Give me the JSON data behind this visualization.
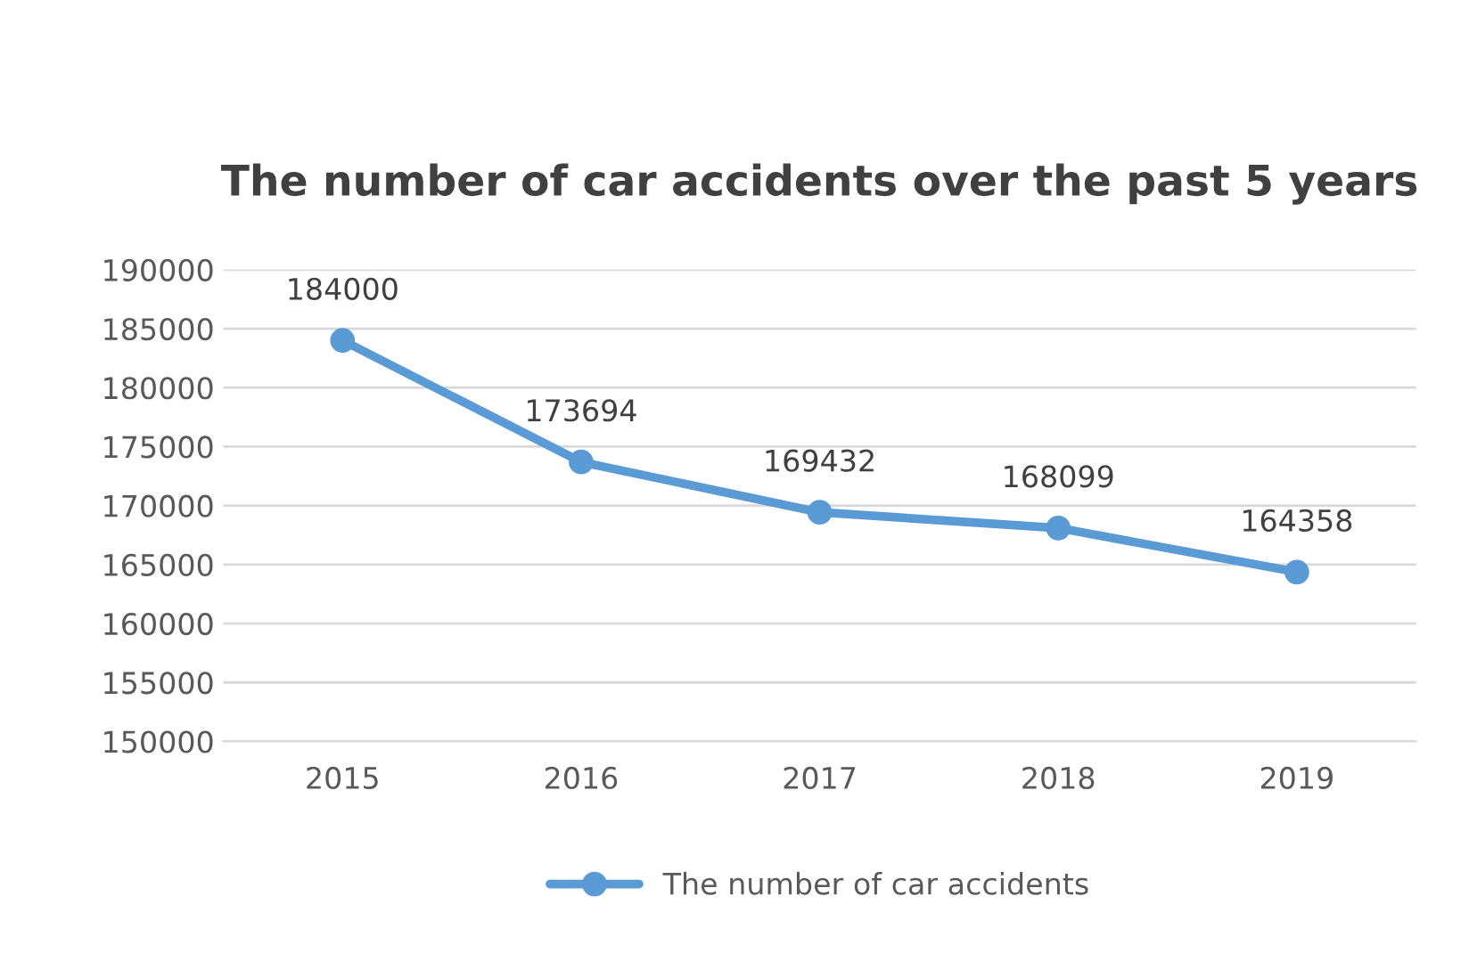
{
  "chart_data": {
    "type": "line",
    "title": "The number of car accidents over the past 5 years",
    "categories": [
      "2015",
      "2016",
      "2017",
      "2018",
      "2019"
    ],
    "series": [
      {
        "name": "The number of car accidents",
        "color": "#5b9bd5",
        "values": [
          184000,
          173694,
          169432,
          168099,
          164358
        ]
      }
    ],
    "ylim": [
      150000,
      190000
    ],
    "yticks": [
      150000,
      155000,
      160000,
      165000,
      170000,
      175000,
      180000,
      185000,
      190000
    ],
    "grid": "y",
    "legend": "bottom",
    "marker": "circle",
    "line_style": "solid",
    "data_labels": true
  }
}
